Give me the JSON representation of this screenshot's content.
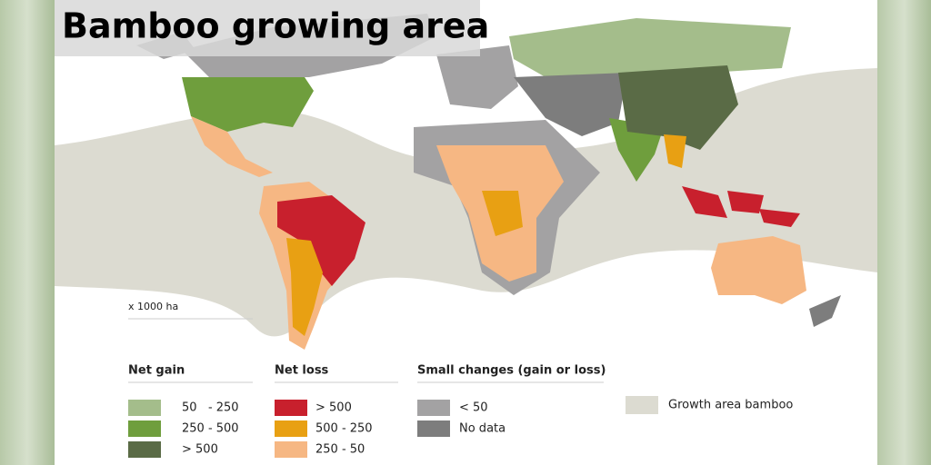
{
  "title": "Bamboo growing area",
  "unit": "x 1000 ha",
  "legend": {
    "groups": [
      {
        "title": "Net gain",
        "items": [
          {
            "label": "50   - 250",
            "color": "#a4bd8b"
          },
          {
            "label": "250 - 500",
            "color": "#6f9e3d"
          },
          {
            "label": "> 500",
            "color": "#5a6b46"
          }
        ]
      },
      {
        "title": "Net loss",
        "items": [
          {
            "label": "> 500",
            "color": "#c8202d"
          },
          {
            "label": "500 - 250",
            "color": "#e8a013"
          },
          {
            "label": "250 - 50",
            "color": "#f6b783"
          }
        ]
      },
      {
        "title": "Small changes (gain or loss)",
        "items": [
          {
            "label": "< 50",
            "color": "#a3a2a3"
          },
          {
            "label": "No data",
            "color": "#7d7d7d"
          }
        ]
      }
    ],
    "growth_area": {
      "label": "Growth area bamboo",
      "color": "#dcdbd1"
    }
  }
}
